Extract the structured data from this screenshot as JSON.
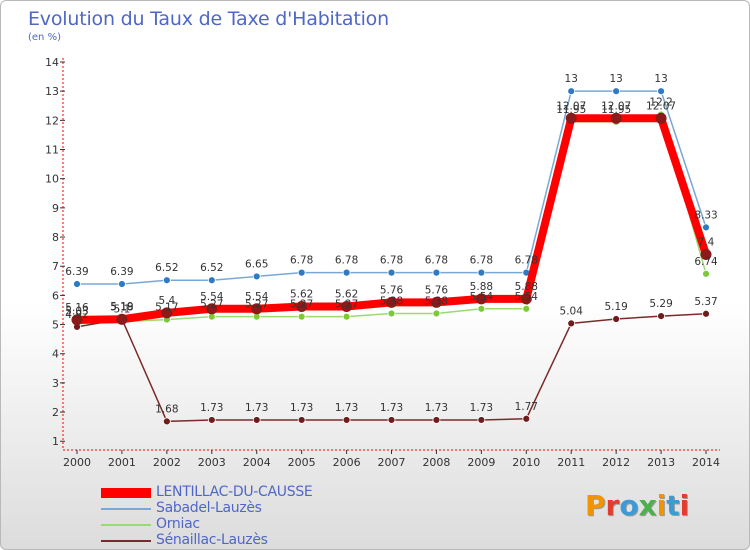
{
  "title": "Evolution du Taux de Taxe d'Habitation",
  "subtitle": "(en %)",
  "logo": {
    "letters": [
      "P",
      "r",
      "o",
      "x",
      "i",
      "t",
      "i"
    ],
    "colors": [
      "#f29400",
      "#e43c2c",
      "#3a9bd6",
      "#4bb24b",
      "#f29400",
      "#3a9bd6",
      "#e43c2c"
    ]
  },
  "chart_data": {
    "type": "line",
    "x": [
      "2000",
      "2001",
      "2002",
      "2003",
      "2004",
      "2005",
      "2006",
      "2007",
      "2008",
      "2009",
      "2010",
      "2011",
      "2012",
      "2013",
      "2014"
    ],
    "y_ticks": [
      "1",
      "2",
      "3",
      "4",
      "5",
      "6",
      "7",
      "8",
      "9",
      "10",
      "11",
      "12",
      "13",
      "14"
    ],
    "ylim": [
      0.7,
      14
    ],
    "grid": false,
    "legend_position": "bottom-left",
    "series": [
      {
        "name": "LENTILLAC-DU-CAUSSE",
        "color": "#ff0000",
        "marker": "#8b1a1a",
        "width": 8,
        "values": [
          5.16,
          5.18,
          5.4,
          5.54,
          5.54,
          5.62,
          5.62,
          5.76,
          5.76,
          5.88,
          5.88,
          12.07,
          12.07,
          12.07,
          7.4
        ],
        "labels": [
          "5.16",
          "5.18",
          "5.4",
          "5.54",
          "5.54",
          "5.62",
          "5.62",
          "5.76",
          "5.76",
          "5.88",
          "5.88",
          "12.07",
          "12.07",
          "12.07",
          "7.4"
        ]
      },
      {
        "name": "Sabadel-Lauzès",
        "color": "#78a8d8",
        "marker": "#2e7bc4",
        "width": 1.5,
        "values": [
          6.39,
          6.39,
          6.52,
          6.52,
          6.65,
          6.78,
          6.78,
          6.78,
          6.78,
          6.78,
          6.78,
          13,
          13,
          13,
          8.33
        ],
        "labels": [
          "6.39",
          "6.39",
          "6.52",
          "6.52",
          "6.65",
          "6.78",
          "6.78",
          "6.78",
          "6.78",
          "6.78",
          "6.78",
          "13",
          "13",
          "13",
          "8.33"
        ]
      },
      {
        "name": "Orniac",
        "color": "#98dc70",
        "marker": "#7cc83c",
        "width": 1.5,
        "values": [
          5.03,
          5.1,
          5.17,
          5.27,
          5.27,
          5.27,
          5.27,
          5.38,
          5.38,
          5.54,
          5.54,
          11.95,
          11.95,
          12.2,
          6.74
        ],
        "labels": [
          "5.03",
          "5.1",
          "5.17",
          "5.27",
          "5.27",
          "5.27",
          "5.27",
          "5.38",
          "5.38",
          "5.54",
          "5.54",
          "11.95",
          "11.95",
          "12.2",
          "6.74"
        ]
      },
      {
        "name": "Sénaillac-Lauzès",
        "color": "#7a2a2a",
        "marker": "#6e1c1c",
        "width": 1.5,
        "values": [
          4.92,
          5.19,
          1.68,
          1.73,
          1.73,
          1.73,
          1.73,
          1.73,
          1.73,
          1.73,
          1.77,
          5.04,
          5.19,
          5.29,
          5.37
        ],
        "labels": [
          "4.92",
          "5.19",
          "1.68",
          "1.73",
          "1.73",
          "1.73",
          "1.73",
          "1.73",
          "1.73",
          "1.73",
          "1.77",
          "5.04",
          "5.19",
          "5.29",
          "5.37"
        ]
      }
    ]
  }
}
